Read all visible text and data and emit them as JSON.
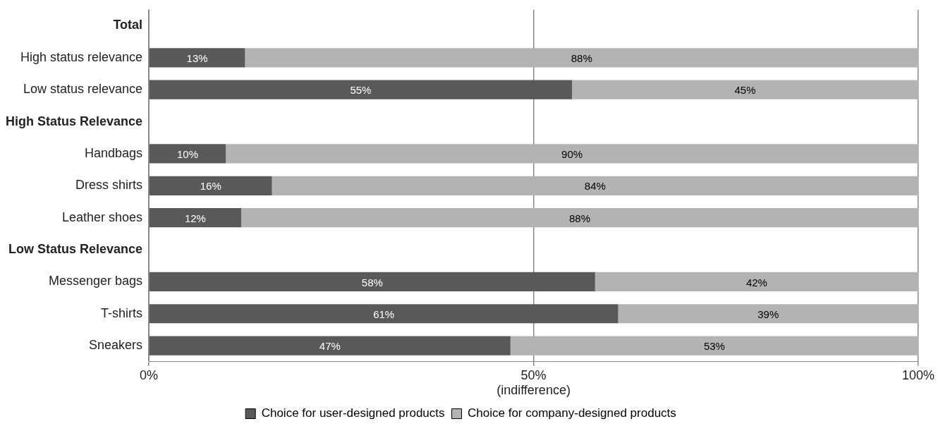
{
  "chart_data": {
    "type": "bar",
    "orientation": "horizontal",
    "stacked": true,
    "categories": [
      "Total",
      "High status relevance",
      "Low status relevance",
      "High Status Relevance",
      "Handbags",
      "Dress shirts",
      "Leather shoes",
      "Low Status Relevance",
      "Messenger bags",
      "T-shirts",
      "Sneakers"
    ],
    "series": [
      {
        "name": "Choice for user-designed products",
        "color": "#595959",
        "values": [
          null,
          12.5,
          55,
          null,
          10,
          16,
          12,
          null,
          58,
          61,
          47
        ],
        "value_labels": [
          null,
          "13%",
          "55%",
          null,
          "10%",
          "16%",
          "12%",
          null,
          "58%",
          "61%",
          "47%"
        ]
      },
      {
        "name": "Choice for company-designed products",
        "color": "#b3b3b3",
        "values": [
          null,
          87.5,
          45,
          null,
          90,
          84,
          88,
          null,
          42,
          39,
          53
        ],
        "value_labels": [
          null,
          "88%",
          "45%",
          null,
          "90%",
          "84%",
          "88%",
          null,
          "42%",
          "39%",
          "53%"
        ]
      }
    ],
    "xlim": [
      0,
      100
    ],
    "xticks": [
      {
        "value": 0,
        "label": "0%"
      },
      {
        "value": 50,
        "label": "50%\n(indifference)"
      },
      {
        "value": 100,
        "label": "100%"
      }
    ],
    "grid": "x",
    "legend": "bottom"
  }
}
